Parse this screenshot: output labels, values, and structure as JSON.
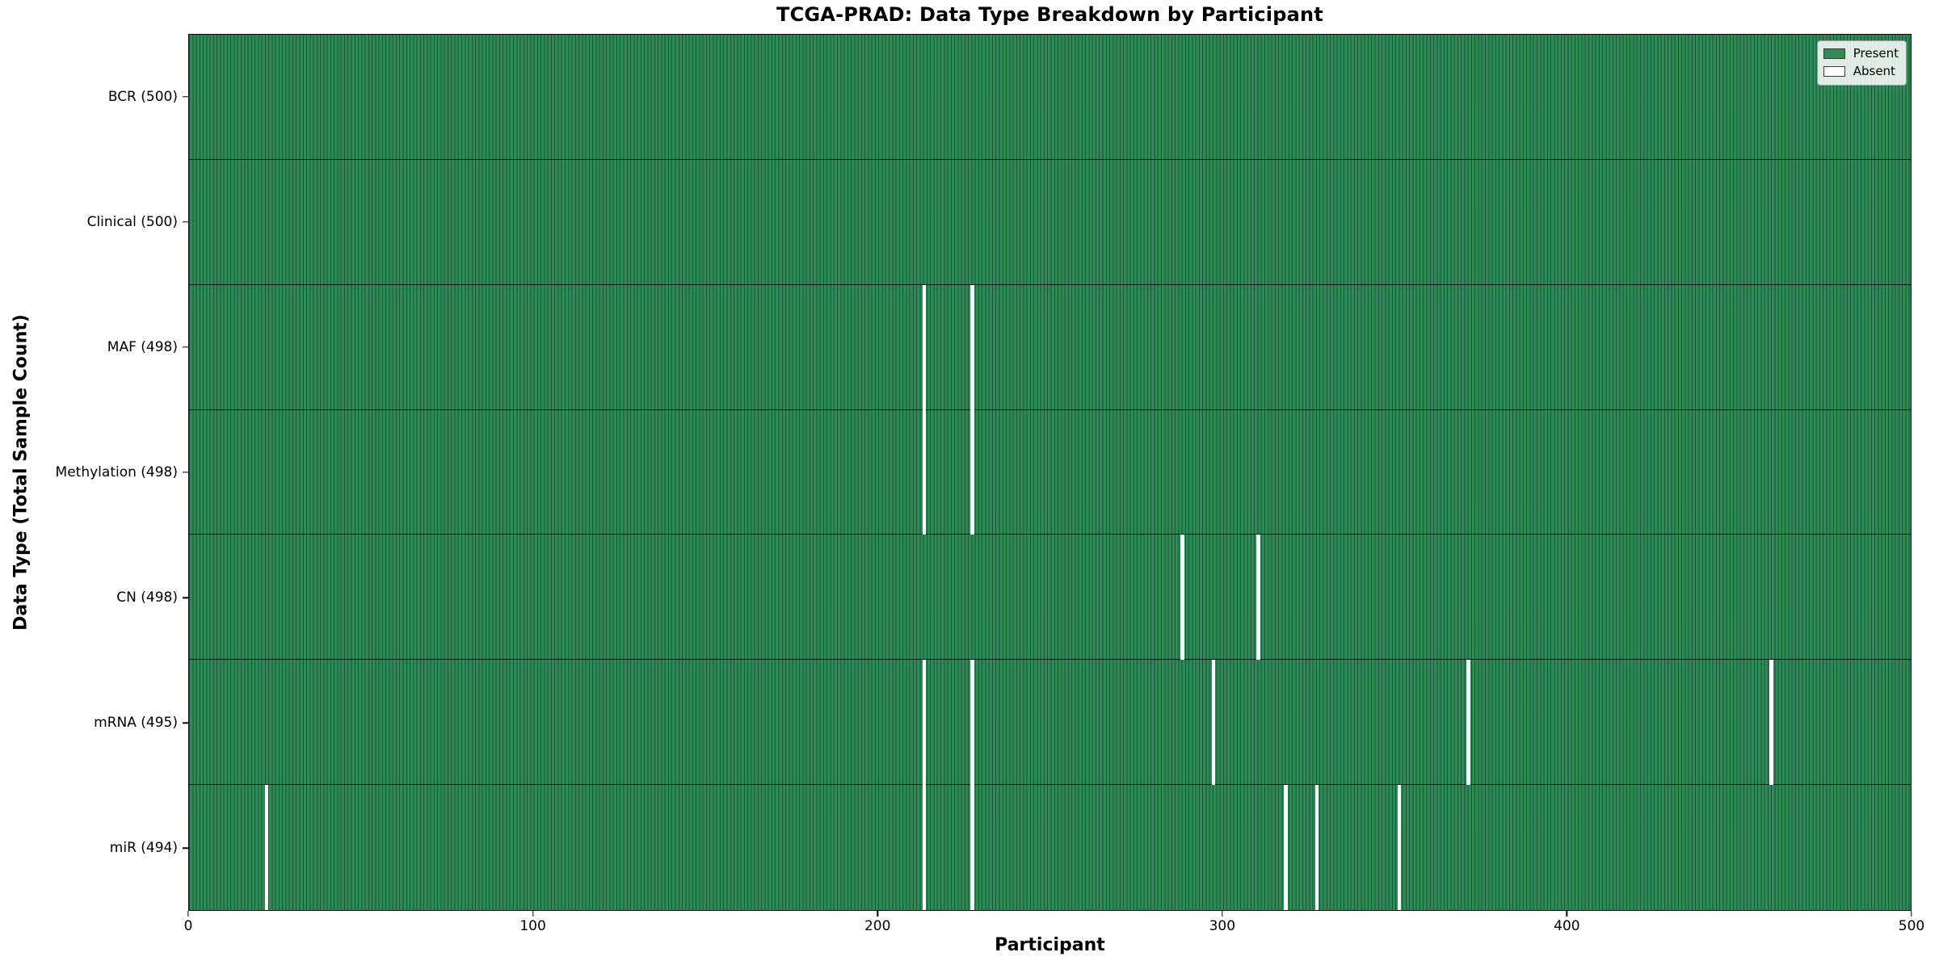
{
  "chart_data": {
    "type": "heatmap",
    "title": "TCGA-PRAD: Data Type Breakdown by Participant",
    "xlabel": "Participant",
    "ylabel": "Data Type (Total Sample Count)",
    "xlim": [
      0,
      500
    ],
    "x_ticks": [
      0,
      100,
      200,
      300,
      400,
      500
    ],
    "n_participants": 500,
    "grid": false,
    "legend": {
      "position": "upper right",
      "entries": [
        {
          "label": "Present",
          "color": "#2e8b57"
        },
        {
          "label": "Absent",
          "color": "#ffffff"
        }
      ]
    },
    "rows": [
      {
        "label": "BCR (500)",
        "data_type": "BCR",
        "total": 500,
        "absent_participants": []
      },
      {
        "label": "Clinical (500)",
        "data_type": "Clinical",
        "total": 500,
        "absent_participants": []
      },
      {
        "label": "MAF (498)",
        "data_type": "MAF",
        "total": 498,
        "absent_participants": [
          213,
          227
        ]
      },
      {
        "label": "Methylation (498)",
        "data_type": "Methylation",
        "total": 498,
        "absent_participants": [
          213,
          227
        ]
      },
      {
        "label": "CN (498)",
        "data_type": "CN",
        "total": 498,
        "absent_participants": [
          288,
          310
        ]
      },
      {
        "label": "mRNA (495)",
        "data_type": "mRNA",
        "total": 495,
        "absent_participants": [
          213,
          227,
          297,
          371,
          459
        ]
      },
      {
        "label": "miR (494)",
        "data_type": "miR",
        "total": 494,
        "absent_participants": [
          22,
          213,
          227,
          318,
          327,
          351
        ]
      }
    ],
    "colors": {
      "present": "#2e8b57",
      "absent": "#ffffff",
      "cell_edge": "rgba(10,40,25,0.55)",
      "row_separator": "#000000",
      "spine": "#000000"
    }
  }
}
